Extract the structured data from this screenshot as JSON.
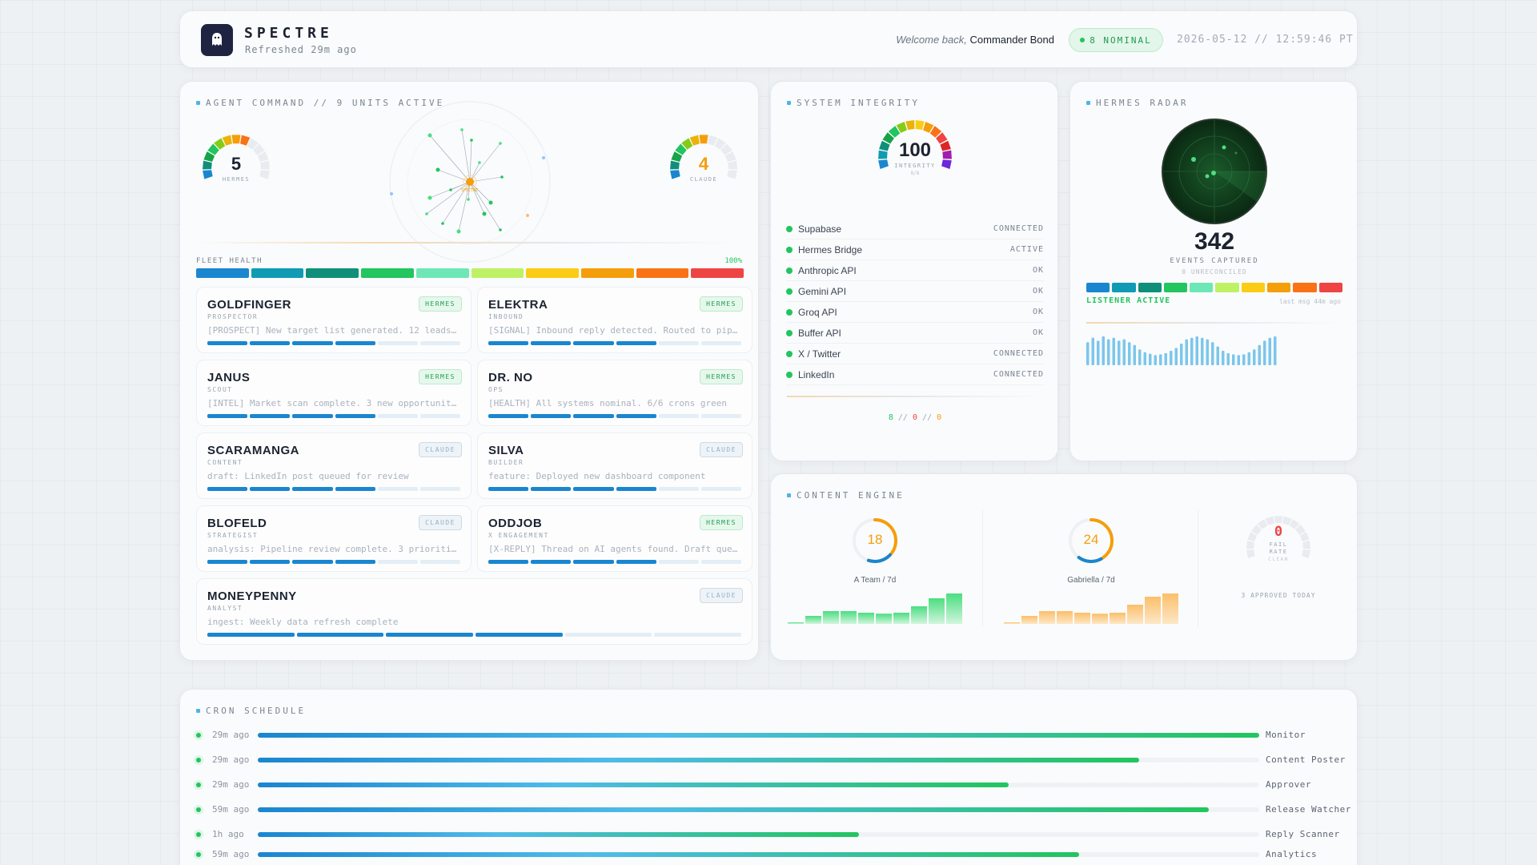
{
  "header": {
    "brand": "SPECTRE",
    "refreshed": "Refreshed 29m ago",
    "welcome_prefix": "Welcome back,",
    "welcome_name": "Commander Bond",
    "status_badge": "8 NOMINAL",
    "datetime": "2026-05-12 // 12:59:46 PT"
  },
  "agent_command": {
    "title": "AGENT COMMAND // 9 UNITS ACTIVE",
    "gauge_left": {
      "value": 5,
      "label": "HERMES",
      "color": "#1b2330"
    },
    "gauge_right": {
      "value": 4,
      "label": "CLAUDE",
      "color": "#f59e0b"
    },
    "network_center": "SPECTRE",
    "fleet_label": "FLEET HEALTH",
    "fleet_pct": "100%",
    "fleet_colors": [
      "#1a86d0",
      "#0f9bb3",
      "#0f8f7a",
      "#22c55e",
      "#6ee7b7",
      "#bef264",
      "#facc15",
      "#f59e0b",
      "#f97316",
      "#ef4444"
    ],
    "agents": [
      {
        "name": "GOLDFINGER",
        "role": "PROSPECTOR",
        "badge": "HERMES",
        "type": "hermes",
        "msg": "[PROSPECT] New target list generated. 12 leads qualified",
        "progress": 0.6
      },
      {
        "name": "ELEKTRA",
        "role": "INBOUND",
        "badge": "HERMES",
        "type": "hermes",
        "msg": "[SIGNAL] Inbound reply detected. Routed to pipeline",
        "progress": 0.6
      },
      {
        "name": "JANUS",
        "role": "SCOUT",
        "badge": "HERMES",
        "type": "hermes",
        "msg": "[INTEL] Market scan complete. 3 new opportunities",
        "progress": 0.6
      },
      {
        "name": "DR. NO",
        "role": "OPS",
        "badge": "HERMES",
        "type": "hermes",
        "msg": "[HEALTH] All systems nominal. 6/6 crons green",
        "progress": 0.6
      },
      {
        "name": "SCARAMANGA",
        "role": "CONTENT",
        "badge": "CLAUDE",
        "type": "claude",
        "msg": "draft: LinkedIn post queued for review",
        "progress": 0.6
      },
      {
        "name": "SILVA",
        "role": "BUILDER",
        "badge": "CLAUDE",
        "type": "claude",
        "msg": "feature: Deployed new dashboard component",
        "progress": 0.6
      },
      {
        "name": "BLOFELD",
        "role": "STRATEGIST",
        "badge": "CLAUDE",
        "type": "claude",
        "msg": "analysis: Pipeline review complete. 3 priorities set",
        "progress": 0.6
      },
      {
        "name": "ODDJOB",
        "role": "X ENGAGEMENT",
        "badge": "HERMES",
        "type": "hermes",
        "msg": "[X-REPLY] Thread on AI agents found. Draft queued",
        "progress": 0.6
      },
      {
        "name": "MONEYPENNY",
        "role": "ANALYST",
        "badge": "CLAUDE",
        "type": "claude",
        "msg": "ingest: Weekly data refresh complete",
        "progress": 0.6
      }
    ]
  },
  "system_integrity": {
    "title": "SYSTEM INTEGRITY",
    "gauge_value": "100",
    "gauge_label": "INTEGRITY",
    "gauge_sub": "8/8",
    "services": [
      {
        "name": "Supabase",
        "status": "CONNECTED"
      },
      {
        "name": "Hermes Bridge",
        "status": "ACTIVE"
      },
      {
        "name": "Anthropic API",
        "status": "OK"
      },
      {
        "name": "Gemini API",
        "status": "OK"
      },
      {
        "name": "Groq API",
        "status": "OK"
      },
      {
        "name": "Buffer API",
        "status": "OK"
      },
      {
        "name": "X / Twitter",
        "status": "CONNECTED"
      },
      {
        "name": "LinkedIn",
        "status": "CONNECTED"
      }
    ],
    "summary_ok": "8",
    "summary_fail": "0",
    "summary_warn": "0",
    "summary_sep": "//"
  },
  "hermes_radar": {
    "title": "HERMES RADAR",
    "events": "342",
    "events_label": "EVENTS CAPTURED",
    "unreconciled": "0 UNRECONCILED",
    "listener": "LISTENER ACTIVE",
    "last_msg": "last msg 44m ago",
    "waveform": [
      0.8,
      0.95,
      0.85,
      1.0,
      0.9,
      0.95,
      0.85,
      0.9,
      0.8,
      0.7,
      0.55,
      0.45,
      0.4,
      0.35,
      0.38,
      0.42,
      0.5,
      0.6,
      0.75,
      0.9,
      0.95,
      1.0,
      0.95,
      0.9,
      0.8,
      0.65,
      0.5,
      0.42,
      0.38,
      0.35,
      0.38,
      0.45,
      0.55,
      0.7,
      0.85,
      0.95,
      1.0
    ]
  },
  "content_engine": {
    "title": "CONTENT ENGINE",
    "team_a": {
      "value": "18",
      "caption": "A Team / 7d",
      "color": "#f59e0b",
      "bars": [
        0.05,
        0.25,
        0.4,
        0.4,
        0.35,
        0.32,
        0.35,
        0.55,
        0.8,
        0.95
      ]
    },
    "team_b": {
      "value": "24",
      "caption": "Gabriella / 7d",
      "color": "#f59e0b",
      "bars": [
        0.05,
        0.25,
        0.4,
        0.4,
        0.35,
        0.32,
        0.35,
        0.6,
        0.85,
        0.95
      ]
    },
    "fail_value": "0",
    "fail_label": "FAIL",
    "fail_label2": "RATE",
    "fail_sub": "CLEAN",
    "approved": "3 APPROVED TODAY"
  },
  "cron": {
    "title": "CRON SCHEDULE",
    "jobs": [
      {
        "time": "29m ago",
        "name": "Monitor",
        "progress": 1.0
      },
      {
        "time": "29m ago",
        "name": "Content Poster",
        "progress": 0.88
      },
      {
        "time": "29m ago",
        "name": "Approver",
        "progress": 0.75
      },
      {
        "time": "59m ago",
        "name": "Release Watcher",
        "progress": 0.95
      },
      {
        "time": "1h ago",
        "name": "Reply Scanner",
        "progress": 0.6
      },
      {
        "time": "59m ago",
        "name": "Analytics",
        "progress": 0.82
      }
    ]
  }
}
